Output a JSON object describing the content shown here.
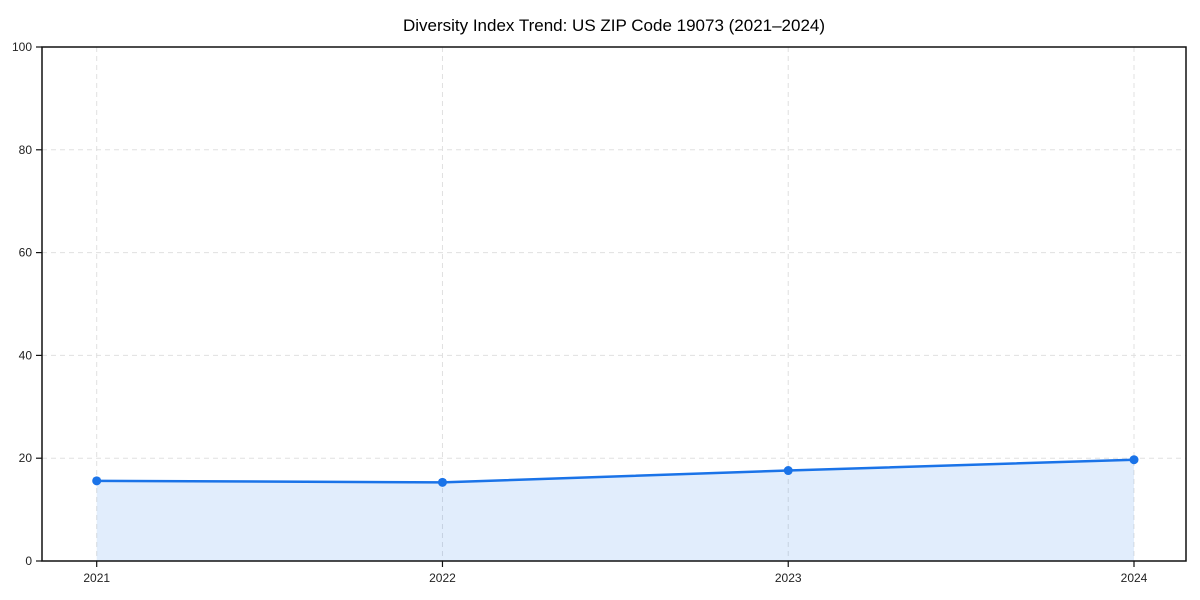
{
  "chart_data": {
    "type": "area",
    "title": "Diversity Index Trend: US ZIP Code 19073 (2021–2024)",
    "categories": [
      "2021",
      "2022",
      "2023",
      "2024"
    ],
    "values": [
      15.6,
      15.3,
      17.6,
      19.7
    ],
    "xlabel": "",
    "ylabel": "",
    "ylim": [
      0,
      100
    ],
    "yticks": [
      0,
      20,
      40,
      60,
      80,
      100
    ],
    "grid": true,
    "grid_style": "dashed",
    "legend_position": "none",
    "colors": {
      "line": "#1a73e8",
      "marker": "#1a73e8",
      "fill": "rgba(26,115,232,0.13)",
      "gridline": "#e0e0e0",
      "spine": "#111111",
      "tick_label": "#222222",
      "title": "#000000",
      "background": "#ffffff"
    }
  }
}
